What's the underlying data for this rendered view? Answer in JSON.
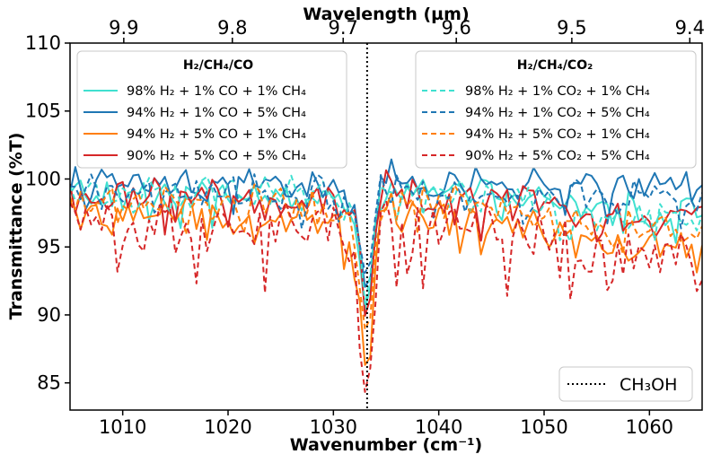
{
  "chart_data": {
    "type": "line",
    "xlabel": "Wavenumber (cm⁻¹)",
    "ylabel": "Transmittance (%T)",
    "top_xlabel": "Wavelength (µm)",
    "xlim": [
      1005,
      1065
    ],
    "ylim": [
      83,
      110
    ],
    "xticks": [
      1010,
      1020,
      1030,
      1040,
      1050,
      1060
    ],
    "yticks": [
      85,
      90,
      95,
      100,
      105,
      110
    ],
    "top_ticks_um": [
      9.9,
      9.8,
      9.7,
      9.6,
      9.5,
      9.4
    ],
    "top_tick_labels": [
      "9.9",
      "9.8",
      "9.7",
      "9.6",
      "9.5",
      "9.4"
    ],
    "vline": {
      "x": 1033.2,
      "label": "CH₃OH",
      "style": "dotted"
    },
    "legend_left_title": "H₂/CH₄/CO",
    "legend_right_title": "H₂/CH₄/CO₂",
    "series": [
      {
        "name": "98% H₂ + 1% CO + 1% CH₄",
        "group": "CO",
        "color": "#40e0d0",
        "dash": "solid",
        "baseline": 98.9,
        "tail": 97.8,
        "min": 90.5,
        "noise": 0.8
      },
      {
        "name": "94% H₂ + 1% CO + 5% CH₄",
        "group": "CO",
        "color": "#1f77b4",
        "dash": "solid",
        "baseline": 99.6,
        "tail": 99.6,
        "min": 91.0,
        "noise": 0.9
      },
      {
        "name": "94% H₂ + 5% CO + 1% CH₄",
        "group": "CO",
        "color": "#ff7f0e",
        "dash": "solid",
        "baseline": 97.3,
        "tail": 95.3,
        "min": 85.5,
        "noise": 1.0
      },
      {
        "name": "90% H₂ + 5% CO + 5% CH₄",
        "group": "CO",
        "color": "#d62728",
        "dash": "solid",
        "baseline": 98.6,
        "tail": 97.3,
        "min": 90.5,
        "noise": 1.0
      },
      {
        "name": "98% H₂ + 1% CO₂ + 1% CH₄",
        "group": "CO2",
        "color": "#40e0d0",
        "dash": "dashed",
        "baseline": 99.0,
        "tail": 97.4,
        "min": 92.5,
        "noise": 0.8
      },
      {
        "name": "94% H₂ + 1% CO₂ + 5% CH₄",
        "group": "CO2",
        "color": "#1f77b4",
        "dash": "dashed",
        "baseline": 99.2,
        "tail": 98.6,
        "min": 93.5,
        "noise": 0.9
      },
      {
        "name": "94% H₂ + 5% CO₂ + 1% CH₄",
        "group": "CO2",
        "color": "#ff7f0e",
        "dash": "dashed",
        "baseline": 98.2,
        "tail": 96.4,
        "min": 88.5,
        "noise": 1.0
      },
      {
        "name": "90% H₂ + 5% CO₂ + 5% CH₄",
        "group": "CO2",
        "color": "#d62728",
        "dash": "dashed",
        "baseline": 96.5,
        "tail": 94.0,
        "min": 83.2,
        "noise": 1.8
      }
    ]
  }
}
